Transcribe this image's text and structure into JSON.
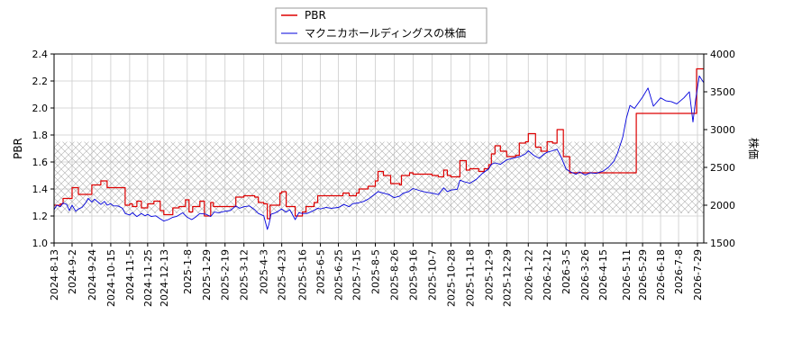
{
  "chart_data": {
    "type": "line",
    "legend": {
      "placement": "top-center",
      "items": [
        "PBR",
        "マクニカホールディングスの株価"
      ]
    },
    "axes": {
      "left": {
        "label": "PBR",
        "ylim": [
          1.0,
          2.4
        ],
        "ticks": [
          "1.0",
          "1.2",
          "1.4",
          "1.6",
          "1.8",
          "2.0",
          "2.2",
          "2.4"
        ]
      },
      "right": {
        "label": "株価",
        "ylim": [
          1500,
          4000
        ],
        "ticks": [
          "1500",
          "2000",
          "2500",
          "3000",
          "3500",
          "4000"
        ]
      },
      "x": {
        "range": [
          "2024-08-13",
          "2026-08-05"
        ],
        "ticks": [
          "2024-8-13",
          "2024-9-2",
          "2024-9-24",
          "2024-10-15",
          "2024-11-5",
          "2024-11-25",
          "2024-12-13",
          "2025-1-8",
          "2025-1-29",
          "2025-2-19",
          "2025-3-12",
          "2025-4-3",
          "2025-4-23",
          "2025-5-16",
          "2025-6-5",
          "2025-6-25",
          "2025-7-15",
          "2025-8-5",
          "2025-8-26",
          "2025-9-16",
          "2025-10-7",
          "2025-10-28",
          "2025-11-18",
          "2025-12-9",
          "2025-12-29",
          "2026-1-22",
          "2026-2-12",
          "2026-3-5",
          "2026-3-26",
          "2026-4-15",
          "2026-5-11",
          "2026-5-29",
          "2026-6-18",
          "2026-7-8",
          "2026-7-29"
        ]
      },
      "grid": true
    },
    "band": {
      "axis": "left",
      "range": [
        1.22,
        1.75
      ],
      "pattern": "crosshatch"
    },
    "series": [
      {
        "name": "PBR",
        "axis": "left",
        "color": "#dd0000",
        "points": [
          [
            "2024-08-13",
            1.28
          ],
          [
            "2024-08-20",
            1.29
          ],
          [
            "2024-08-23",
            1.33
          ],
          [
            "2024-08-30",
            1.33
          ],
          [
            "2024-09-02",
            1.41
          ],
          [
            "2024-09-06",
            1.41
          ],
          [
            "2024-09-09",
            1.36
          ],
          [
            "2024-09-20",
            1.36
          ],
          [
            "2024-09-24",
            1.43
          ],
          [
            "2024-10-01",
            1.43
          ],
          [
            "2024-10-04",
            1.46
          ],
          [
            "2024-10-10",
            1.46
          ],
          [
            "2024-10-11",
            1.41
          ],
          [
            "2024-10-30",
            1.41
          ],
          [
            "2024-10-31",
            1.28
          ],
          [
            "2024-11-05",
            1.29
          ],
          [
            "2024-11-08",
            1.27
          ],
          [
            "2024-11-13",
            1.31
          ],
          [
            "2024-11-18",
            1.26
          ],
          [
            "2024-11-25",
            1.29
          ],
          [
            "2024-12-02",
            1.31
          ],
          [
            "2024-12-09",
            1.24
          ],
          [
            "2024-12-13",
            1.21
          ],
          [
            "2024-12-20",
            1.21
          ],
          [
            "2024-12-23",
            1.26
          ],
          [
            "2024-12-30",
            1.27
          ],
          [
            "2025-01-06",
            1.32
          ],
          [
            "2025-01-10",
            1.23
          ],
          [
            "2025-01-14",
            1.27
          ],
          [
            "2025-01-20",
            1.27
          ],
          [
            "2025-01-22",
            1.31
          ],
          [
            "2025-01-27",
            1.2
          ],
          [
            "2025-01-29",
            1.2
          ],
          [
            "2025-02-03",
            1.3
          ],
          [
            "2025-02-06",
            1.27
          ],
          [
            "2025-02-19",
            1.27
          ],
          [
            "2025-02-28",
            1.27
          ],
          [
            "2025-03-03",
            1.34
          ],
          [
            "2025-03-12",
            1.35
          ],
          [
            "2025-03-24",
            1.34
          ],
          [
            "2025-03-28",
            1.3
          ],
          [
            "2025-04-03",
            1.29
          ],
          [
            "2025-04-07",
            1.18
          ],
          [
            "2025-04-10",
            1.28
          ],
          [
            "2025-04-18",
            1.28
          ],
          [
            "2025-04-21",
            1.37
          ],
          [
            "2025-04-23",
            1.38
          ],
          [
            "2025-04-28",
            1.27
          ],
          [
            "2025-05-05",
            1.27
          ],
          [
            "2025-05-08",
            1.2
          ],
          [
            "2025-05-16",
            1.23
          ],
          [
            "2025-05-20",
            1.27
          ],
          [
            "2025-05-26",
            1.27
          ],
          [
            "2025-05-29",
            1.3
          ],
          [
            "2025-06-02",
            1.35
          ],
          [
            "2025-06-05",
            1.35
          ],
          [
            "2025-06-25",
            1.35
          ],
          [
            "2025-06-30",
            1.37
          ],
          [
            "2025-07-07",
            1.35
          ],
          [
            "2025-07-15",
            1.37
          ],
          [
            "2025-07-18",
            1.4
          ],
          [
            "2025-07-25",
            1.4
          ],
          [
            "2025-07-28",
            1.42
          ],
          [
            "2025-08-05",
            1.46
          ],
          [
            "2025-08-08",
            1.53
          ],
          [
            "2025-08-14",
            1.5
          ],
          [
            "2025-08-22",
            1.44
          ],
          [
            "2025-08-26",
            1.44
          ],
          [
            "2025-09-01",
            1.43
          ],
          [
            "2025-09-03",
            1.5
          ],
          [
            "2025-09-12",
            1.52
          ],
          [
            "2025-09-16",
            1.51
          ],
          [
            "2025-10-07",
            1.5
          ],
          [
            "2025-10-14",
            1.49
          ],
          [
            "2025-10-20",
            1.54
          ],
          [
            "2025-10-24",
            1.5
          ],
          [
            "2025-10-28",
            1.49
          ],
          [
            "2025-11-04",
            1.49
          ],
          [
            "2025-11-07",
            1.61
          ],
          [
            "2025-11-14",
            1.54
          ],
          [
            "2025-11-18",
            1.55
          ],
          [
            "2025-11-25",
            1.55
          ],
          [
            "2025-11-28",
            1.53
          ],
          [
            "2025-12-04",
            1.55
          ],
          [
            "2025-12-09",
            1.58
          ],
          [
            "2025-12-12",
            1.66
          ],
          [
            "2025-12-16",
            1.72
          ],
          [
            "2025-12-22",
            1.68
          ],
          [
            "2025-12-29",
            1.64
          ],
          [
            "2026-01-08",
            1.65
          ],
          [
            "2026-01-12",
            1.74
          ],
          [
            "2026-01-19",
            1.75
          ],
          [
            "2026-01-22",
            1.81
          ],
          [
            "2026-01-30",
            1.71
          ],
          [
            "2026-02-05",
            1.68
          ],
          [
            "2026-02-12",
            1.75
          ],
          [
            "2026-02-18",
            1.74
          ],
          [
            "2026-02-23",
            1.84
          ],
          [
            "2026-03-02",
            1.64
          ],
          [
            "2026-03-05",
            1.64
          ],
          [
            "2026-03-09",
            1.52
          ],
          [
            "2026-03-26",
            1.52
          ],
          [
            "2026-04-15",
            1.52
          ],
          [
            "2026-05-11",
            1.52
          ],
          [
            "2026-05-20",
            1.52
          ],
          [
            "2026-05-22",
            1.96
          ],
          [
            "2026-05-29",
            1.96
          ],
          [
            "2026-06-18",
            1.96
          ],
          [
            "2026-07-08",
            1.96
          ],
          [
            "2026-07-27",
            1.96
          ],
          [
            "2026-07-28",
            2.29
          ],
          [
            "2026-08-05",
            2.29
          ]
        ]
      },
      {
        "name": "マクニカホールディングスの株価",
        "axis": "right",
        "color": "#0000dd",
        "points": [
          [
            "2024-08-13",
            1940
          ],
          [
            "2024-08-16",
            2000
          ],
          [
            "2024-08-20",
            1980
          ],
          [
            "2024-08-23",
            2030
          ],
          [
            "2024-08-27",
            2010
          ],
          [
            "2024-08-30",
            1930
          ],
          [
            "2024-09-02",
            2000
          ],
          [
            "2024-09-06",
            1920
          ],
          [
            "2024-09-09",
            1950
          ],
          [
            "2024-09-13",
            1970
          ],
          [
            "2024-09-17",
            2030
          ],
          [
            "2024-09-20",
            2090
          ],
          [
            "2024-09-24",
            2040
          ],
          [
            "2024-09-27",
            2080
          ],
          [
            "2024-10-01",
            2040
          ],
          [
            "2024-10-04",
            2010
          ],
          [
            "2024-10-08",
            2050
          ],
          [
            "2024-10-11",
            2000
          ],
          [
            "2024-10-15",
            2020
          ],
          [
            "2024-10-18",
            1990
          ],
          [
            "2024-10-23",
            1990
          ],
          [
            "2024-10-28",
            1960
          ],
          [
            "2024-10-31",
            1890
          ],
          [
            "2024-11-05",
            1870
          ],
          [
            "2024-11-08",
            1900
          ],
          [
            "2024-11-13",
            1850
          ],
          [
            "2024-11-18",
            1890
          ],
          [
            "2024-11-22",
            1860
          ],
          [
            "2024-11-25",
            1880
          ],
          [
            "2024-11-29",
            1850
          ],
          [
            "2024-12-04",
            1860
          ],
          [
            "2024-12-09",
            1820
          ],
          [
            "2024-12-13",
            1790
          ],
          [
            "2024-12-18",
            1810
          ],
          [
            "2024-12-23",
            1840
          ],
          [
            "2024-12-27",
            1850
          ],
          [
            "2025-01-03",
            1900
          ],
          [
            "2025-01-08",
            1840
          ],
          [
            "2025-01-13",
            1810
          ],
          [
            "2025-01-17",
            1840
          ],
          [
            "2025-01-22",
            1890
          ],
          [
            "2025-01-29",
            1880
          ],
          [
            "2025-02-03",
            1850
          ],
          [
            "2025-02-07",
            1910
          ],
          [
            "2025-02-12",
            1900
          ],
          [
            "2025-02-19",
            1920
          ],
          [
            "2025-02-25",
            1930
          ],
          [
            "2025-03-03",
            1990
          ],
          [
            "2025-03-07",
            1960
          ],
          [
            "2025-03-12",
            1980
          ],
          [
            "2025-03-18",
            1990
          ],
          [
            "2025-03-24",
            1940
          ],
          [
            "2025-03-28",
            1890
          ],
          [
            "2025-04-03",
            1860
          ],
          [
            "2025-04-07",
            1680
          ],
          [
            "2025-04-09",
            1760
          ],
          [
            "2025-04-11",
            1880
          ],
          [
            "2025-04-16",
            1900
          ],
          [
            "2025-04-23",
            1950
          ],
          [
            "2025-04-28",
            1910
          ],
          [
            "2025-05-02",
            1940
          ],
          [
            "2025-05-08",
            1810
          ],
          [
            "2025-05-12",
            1900
          ],
          [
            "2025-05-16",
            1890
          ],
          [
            "2025-05-21",
            1890
          ],
          [
            "2025-05-27",
            1920
          ],
          [
            "2025-06-02",
            1960
          ],
          [
            "2025-06-05",
            1950
          ],
          [
            "2025-06-11",
            1970
          ],
          [
            "2025-06-17",
            1960
          ],
          [
            "2025-06-25",
            1970
          ],
          [
            "2025-07-01",
            2010
          ],
          [
            "2025-07-07",
            1980
          ],
          [
            "2025-07-11",
            2020
          ],
          [
            "2025-07-17",
            2030
          ],
          [
            "2025-07-23",
            2050
          ],
          [
            "2025-07-28",
            2080
          ],
          [
            "2025-08-05",
            2150
          ],
          [
            "2025-08-08",
            2180
          ],
          [
            "2025-08-14",
            2160
          ],
          [
            "2025-08-20",
            2140
          ],
          [
            "2025-08-26",
            2100
          ],
          [
            "2025-09-01",
            2120
          ],
          [
            "2025-09-05",
            2160
          ],
          [
            "2025-09-11",
            2180
          ],
          [
            "2025-09-16",
            2220
          ],
          [
            "2025-09-24",
            2190
          ],
          [
            "2025-10-01",
            2170
          ],
          [
            "2025-10-07",
            2160
          ],
          [
            "2025-10-14",
            2140
          ],
          [
            "2025-10-20",
            2230
          ],
          [
            "2025-10-24",
            2180
          ],
          [
            "2025-10-28",
            2200
          ],
          [
            "2025-11-04",
            2210
          ],
          [
            "2025-11-07",
            2330
          ],
          [
            "2025-11-12",
            2310
          ],
          [
            "2025-11-18",
            2290
          ],
          [
            "2025-11-25",
            2340
          ],
          [
            "2025-12-02",
            2420
          ],
          [
            "2025-12-09",
            2480
          ],
          [
            "2025-12-12",
            2540
          ],
          [
            "2025-12-16",
            2560
          ],
          [
            "2025-12-22",
            2540
          ],
          [
            "2025-12-29",
            2600
          ],
          [
            "2026-01-08",
            2630
          ],
          [
            "2026-01-14",
            2650
          ],
          [
            "2026-01-19",
            2680
          ],
          [
            "2026-01-22",
            2720
          ],
          [
            "2026-01-28",
            2660
          ],
          [
            "2026-02-03",
            2620
          ],
          [
            "2026-02-09",
            2680
          ],
          [
            "2026-02-12",
            2700
          ],
          [
            "2026-02-18",
            2720
          ],
          [
            "2026-02-23",
            2740
          ],
          [
            "2026-02-27",
            2650
          ],
          [
            "2026-03-05",
            2480
          ],
          [
            "2026-03-10",
            2440
          ],
          [
            "2026-03-16",
            2410
          ],
          [
            "2026-03-20",
            2440
          ],
          [
            "2026-03-26",
            2400
          ],
          [
            "2026-04-01",
            2430
          ],
          [
            "2026-04-07",
            2420
          ],
          [
            "2026-04-15",
            2450
          ],
          [
            "2026-04-21",
            2500
          ],
          [
            "2026-04-27",
            2580
          ],
          [
            "2026-05-01",
            2680
          ],
          [
            "2026-05-07",
            2900
          ],
          [
            "2026-05-11",
            3150
          ],
          [
            "2026-05-15",
            3320
          ],
          [
            "2026-05-20",
            3280
          ],
          [
            "2026-05-29",
            3430
          ],
          [
            "2026-06-04",
            3550
          ],
          [
            "2026-06-10",
            3310
          ],
          [
            "2026-06-18",
            3420
          ],
          [
            "2026-06-24",
            3380
          ],
          [
            "2026-06-30",
            3370
          ],
          [
            "2026-07-06",
            3340
          ],
          [
            "2026-07-08",
            3360
          ],
          [
            "2026-07-14",
            3420
          ],
          [
            "2026-07-20",
            3500
          ],
          [
            "2026-07-24",
            3100
          ],
          [
            "2026-07-27",
            3400
          ],
          [
            "2026-07-31",
            3710
          ],
          [
            "2026-08-05",
            3620
          ]
        ]
      }
    ]
  }
}
